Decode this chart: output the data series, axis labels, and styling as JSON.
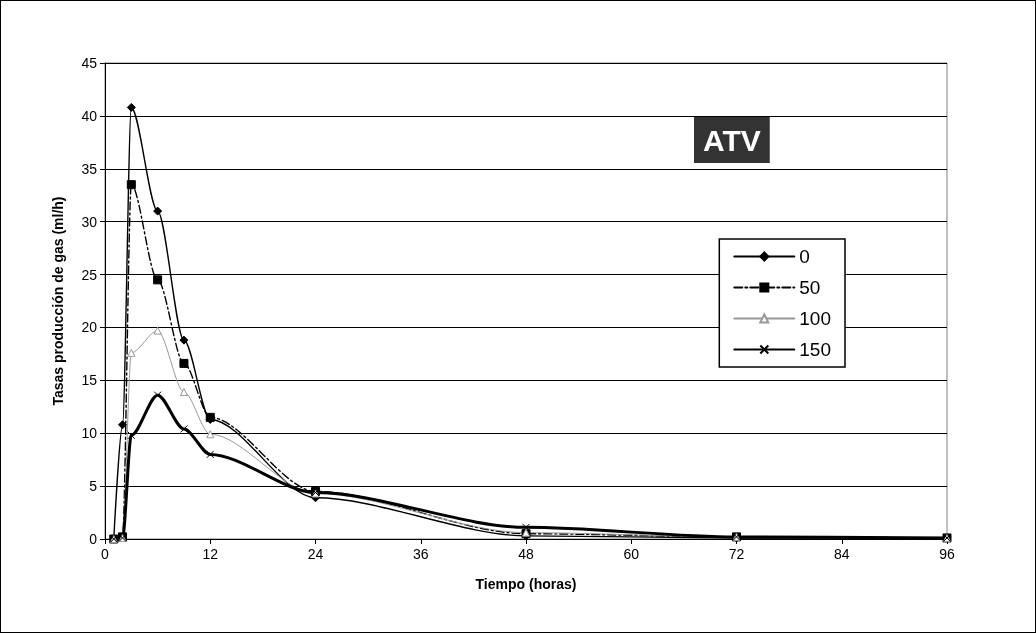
{
  "chart_data": {
    "type": "line",
    "xlabel": "Tiempo (horas)",
    "ylabel": "Tasas producción de gas (ml/h)",
    "annotations": [
      "ATV"
    ],
    "xlim": [
      0,
      96
    ],
    "xticks": [
      0,
      12,
      24,
      36,
      48,
      60,
      72,
      84,
      96
    ],
    "ylim": [
      0,
      45
    ],
    "yticks": [
      0,
      5,
      10,
      15,
      20,
      25,
      30,
      35,
      40,
      45
    ],
    "grid": "y",
    "legend": "right",
    "series": [
      {
        "name": "0",
        "color": "#000000",
        "marker": "diamond",
        "line_style": "solid",
        "x": [
          1,
          2,
          3,
          6,
          9,
          12,
          24,
          48,
          72,
          96
        ],
        "values": [
          0,
          10.8,
          40.8,
          31,
          18.8,
          11.3,
          3.9,
          0.3,
          0.1,
          0.1
        ]
      },
      {
        "name": "50",
        "color": "#000000",
        "marker": "square",
        "line_style": "dashed",
        "x": [
          1,
          2,
          3,
          6,
          9,
          12,
          24,
          48,
          72,
          96
        ],
        "values": [
          0,
          0.2,
          33.5,
          24.5,
          16.6,
          11.5,
          4.5,
          0.5,
          0.2,
          0.1
        ]
      },
      {
        "name": "100",
        "color": "#999999",
        "marker": "triangle",
        "line_style": "solid",
        "x": [
          1,
          2,
          3,
          6,
          9,
          12,
          24,
          48,
          72,
          96
        ],
        "values": [
          0,
          0.1,
          17.6,
          19.7,
          13.9,
          9.9,
          4.3,
          0.6,
          0.2,
          0.1
        ]
      },
      {
        "name": "150",
        "color": "#000000",
        "marker": "cross",
        "line_style": "solid",
        "x": [
          1,
          2,
          3,
          6,
          9,
          12,
          24,
          48,
          72,
          96
        ],
        "values": [
          0,
          0.1,
          9.8,
          13.6,
          10.4,
          8,
          4.4,
          1.1,
          0.2,
          0.1
        ]
      }
    ]
  }
}
